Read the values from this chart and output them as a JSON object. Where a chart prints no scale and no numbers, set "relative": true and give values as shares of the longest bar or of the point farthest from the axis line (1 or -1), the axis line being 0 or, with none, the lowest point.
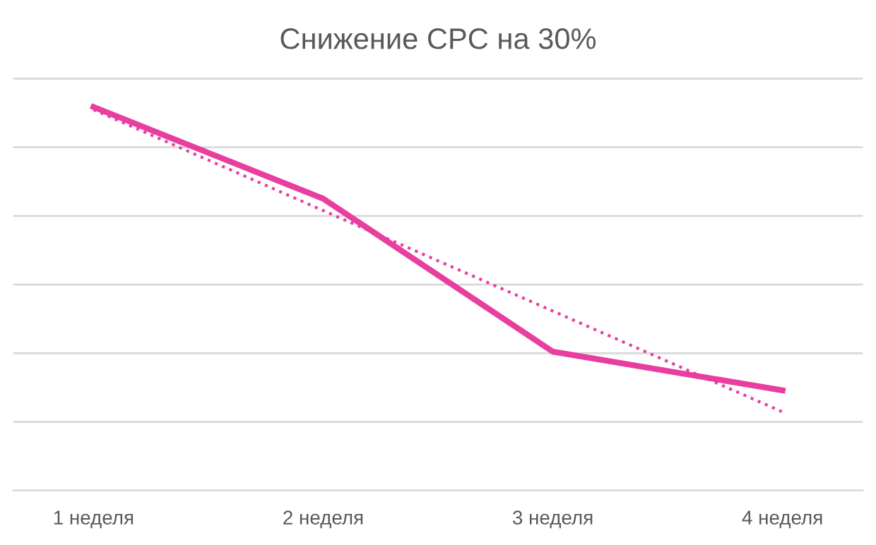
{
  "chart_data": {
    "type": "line",
    "title": "Снижение CPC на 30%",
    "relative": true,
    "grid": "y",
    "categories": [
      "1 неделя",
      "2 неделя",
      "3 неделя",
      "4 неделя"
    ],
    "series": [
      {
        "color": "#e83e9f",
        "values": [
          1,
          0.761,
          0.362,
          0.261
        ],
        "line_style": "solid"
      },
      {
        "color": "#e83e9f",
        "values": [
          0.993,
          0.73,
          0.468,
          0.205
        ],
        "line_style": "dotted"
      }
    ]
  }
}
